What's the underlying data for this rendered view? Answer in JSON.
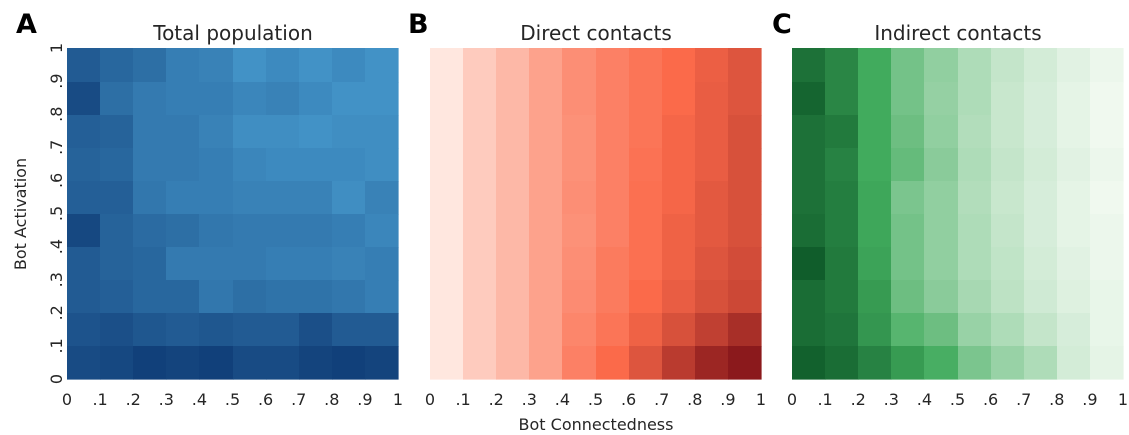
{
  "xlabel": "Bot Connectedness",
  "ylabel": "Bot Activation",
  "tick_labels": [
    "0",
    ".1",
    ".2",
    ".3",
    ".4",
    ".5",
    ".6",
    ".7",
    ".8",
    ".9",
    "1"
  ],
  "chart_data": [
    {
      "type": "heatmap",
      "letter": "A",
      "title": "Total population",
      "colormap": "Blues",
      "color_low": "#f7fbff",
      "color_high": "#08306b",
      "x": [
        0,
        0.1,
        0.2,
        0.3,
        0.4,
        0.5,
        0.6,
        0.7,
        0.8,
        0.9,
        1
      ],
      "y": [
        0,
        0.1,
        0.2,
        0.3,
        0.4,
        0.5,
        0.6,
        0.7,
        0.8,
        0.9,
        1
      ],
      "xlabel": "",
      "ylabel": "Bot Activation",
      "xlim": [
        0,
        1
      ],
      "ylim": [
        0,
        1
      ],
      "grid": false,
      "colorbar": false,
      "rows_top_to_bottom": [
        [
          0.78,
          0.72,
          0.68,
          0.6,
          0.58,
          0.5,
          0.54,
          0.5,
          0.54,
          0.5
        ],
        [
          0.86,
          0.68,
          0.62,
          0.6,
          0.6,
          0.56,
          0.58,
          0.54,
          0.5,
          0.5
        ],
        [
          0.76,
          0.74,
          0.62,
          0.62,
          0.58,
          0.52,
          0.52,
          0.5,
          0.52,
          0.52
        ],
        [
          0.74,
          0.72,
          0.62,
          0.62,
          0.6,
          0.56,
          0.54,
          0.54,
          0.54,
          0.52
        ],
        [
          0.76,
          0.76,
          0.64,
          0.6,
          0.6,
          0.58,
          0.58,
          0.58,
          0.52,
          0.58
        ],
        [
          0.88,
          0.74,
          0.7,
          0.68,
          0.64,
          0.62,
          0.62,
          0.62,
          0.6,
          0.56
        ],
        [
          0.78,
          0.74,
          0.72,
          0.62,
          0.62,
          0.62,
          0.6,
          0.6,
          0.58,
          0.6
        ],
        [
          0.78,
          0.76,
          0.72,
          0.72,
          0.64,
          0.68,
          0.66,
          0.66,
          0.64,
          0.6
        ],
        [
          0.82,
          0.84,
          0.8,
          0.78,
          0.8,
          0.78,
          0.78,
          0.84,
          0.78,
          0.78
        ],
        [
          0.86,
          0.88,
          0.92,
          0.9,
          0.92,
          0.86,
          0.86,
          0.9,
          0.92,
          0.9
        ]
      ]
    },
    {
      "type": "heatmap",
      "letter": "B",
      "title": "Direct contacts",
      "colormap": "Reds",
      "color_low": "#fff5f0",
      "color_high": "#67000d",
      "x": [
        0,
        0.1,
        0.2,
        0.3,
        0.4,
        0.5,
        0.6,
        0.7,
        0.8,
        0.9,
        1
      ],
      "y": [
        0,
        0.1,
        0.2,
        0.3,
        0.4,
        0.5,
        0.6,
        0.7,
        0.8,
        0.9,
        1
      ],
      "xlabel": "Bot Connectedness",
      "ylabel": "",
      "xlim": [
        0,
        1
      ],
      "ylim": [
        0,
        1
      ],
      "grid": false,
      "colorbar": false,
      "rows_top_to_bottom": [
        [
          0.05,
          0.15,
          0.22,
          0.3,
          0.37,
          0.42,
          0.46,
          0.5,
          0.55,
          0.6
        ],
        [
          0.05,
          0.15,
          0.22,
          0.3,
          0.37,
          0.42,
          0.46,
          0.5,
          0.56,
          0.6
        ],
        [
          0.05,
          0.15,
          0.22,
          0.3,
          0.36,
          0.42,
          0.46,
          0.52,
          0.56,
          0.62
        ],
        [
          0.05,
          0.15,
          0.22,
          0.3,
          0.36,
          0.42,
          0.47,
          0.52,
          0.56,
          0.62
        ],
        [
          0.05,
          0.15,
          0.22,
          0.3,
          0.37,
          0.42,
          0.48,
          0.52,
          0.58,
          0.62
        ],
        [
          0.05,
          0.15,
          0.22,
          0.3,
          0.36,
          0.42,
          0.48,
          0.54,
          0.58,
          0.62
        ],
        [
          0.05,
          0.15,
          0.22,
          0.3,
          0.37,
          0.44,
          0.48,
          0.54,
          0.6,
          0.64
        ],
        [
          0.05,
          0.15,
          0.22,
          0.3,
          0.38,
          0.44,
          0.5,
          0.56,
          0.62,
          0.66
        ],
        [
          0.05,
          0.15,
          0.22,
          0.3,
          0.4,
          0.46,
          0.54,
          0.62,
          0.7,
          0.78
        ],
        [
          0.05,
          0.15,
          0.22,
          0.3,
          0.42,
          0.5,
          0.6,
          0.72,
          0.82,
          0.88
        ]
      ]
    },
    {
      "type": "heatmap",
      "letter": "C",
      "title": "Indirect contacts",
      "colormap": "Greens",
      "color_low": "#f7fcf5",
      "color_high": "#00441b",
      "x": [
        0,
        0.1,
        0.2,
        0.3,
        0.4,
        0.5,
        0.6,
        0.7,
        0.8,
        0.9,
        1
      ],
      "y": [
        0,
        0.1,
        0.2,
        0.3,
        0.4,
        0.5,
        0.6,
        0.7,
        0.8,
        0.9,
        1
      ],
      "xlabel": "",
      "ylabel": "",
      "xlim": [
        0,
        1
      ],
      "ylim": [
        0,
        1
      ],
      "grid": false,
      "colorbar": false,
      "rows_top_to_bottom": [
        [
          0.78,
          0.68,
          0.5,
          0.36,
          0.28,
          0.2,
          0.14,
          0.1,
          0.06,
          0.03
        ],
        [
          0.84,
          0.68,
          0.5,
          0.36,
          0.27,
          0.2,
          0.13,
          0.09,
          0.05,
          0.02
        ],
        [
          0.78,
          0.74,
          0.5,
          0.38,
          0.28,
          0.19,
          0.13,
          0.09,
          0.05,
          0.02
        ],
        [
          0.78,
          0.7,
          0.5,
          0.4,
          0.3,
          0.2,
          0.14,
          0.1,
          0.06,
          0.03
        ],
        [
          0.78,
          0.72,
          0.52,
          0.34,
          0.28,
          0.19,
          0.13,
          0.09,
          0.05,
          0.02
        ],
        [
          0.8,
          0.72,
          0.52,
          0.36,
          0.28,
          0.2,
          0.14,
          0.09,
          0.05,
          0.03
        ],
        [
          0.88,
          0.74,
          0.54,
          0.36,
          0.28,
          0.2,
          0.15,
          0.1,
          0.06,
          0.03
        ],
        [
          0.8,
          0.74,
          0.58,
          0.38,
          0.3,
          0.22,
          0.16,
          0.11,
          0.07,
          0.04
        ],
        [
          0.8,
          0.76,
          0.6,
          0.44,
          0.38,
          0.26,
          0.2,
          0.14,
          0.09,
          0.04
        ],
        [
          0.86,
          0.8,
          0.7,
          0.58,
          0.48,
          0.34,
          0.26,
          0.2,
          0.1,
          0.05
        ]
      ]
    }
  ]
}
